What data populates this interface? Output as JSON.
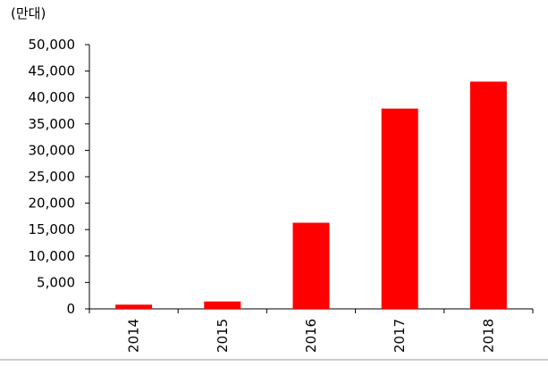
{
  "chart_data": {
    "type": "bar",
    "title": "",
    "unit_label": "(만대)",
    "xlabel": "",
    "ylabel": "",
    "categories": [
      "2014",
      "2015",
      "2016",
      "2017",
      "2018"
    ],
    "values": [
      800,
      1400,
      16300,
      37900,
      43000
    ],
    "ylim": [
      0,
      50000
    ],
    "y_ticks": [
      "0",
      "5,000",
      "10,000",
      "15,000",
      "20,000",
      "25,000",
      "30,000",
      "35,000",
      "40,000",
      "45,000",
      "50,000"
    ],
    "y_tick_values": [
      0,
      5000,
      10000,
      15000,
      20000,
      25000,
      30000,
      35000,
      40000,
      45000,
      50000
    ],
    "bar_color": "#ff0000",
    "grid": false,
    "legend": "none"
  }
}
